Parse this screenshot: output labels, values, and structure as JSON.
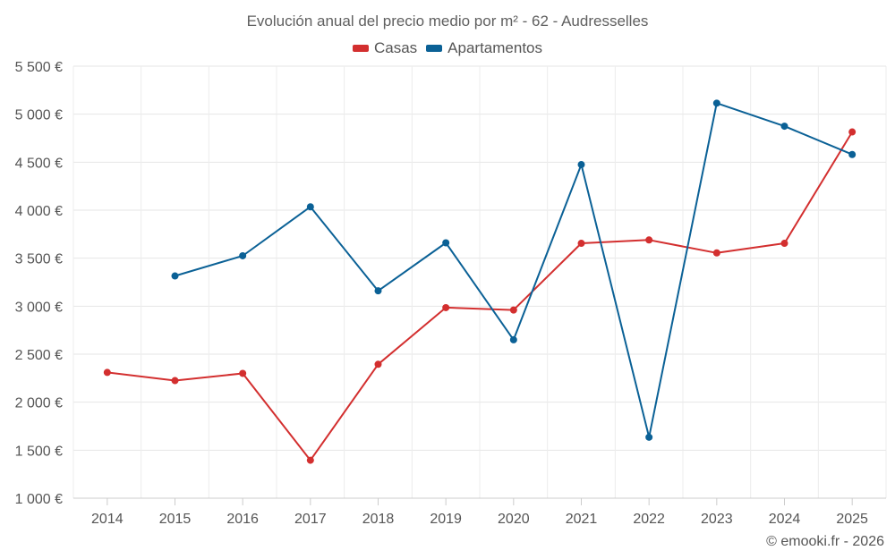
{
  "chart_data": {
    "type": "line",
    "title": "Evolución anual del precio medio por m² - 62 - Audresselles",
    "xlabel": "",
    "ylabel": "",
    "categories": [
      "2014",
      "2015",
      "2016",
      "2017",
      "2018",
      "2019",
      "2020",
      "2021",
      "2022",
      "2023",
      "2024",
      "2025"
    ],
    "ylim": [
      1000,
      5500
    ],
    "yticks": [
      1000,
      1500,
      2000,
      2500,
      3000,
      3500,
      4000,
      4500,
      5000,
      5500
    ],
    "ytick_labels": [
      "1 000 €",
      "1 500 €",
      "2 000 €",
      "2 500 €",
      "3 000 €",
      "3 500 €",
      "4 000 €",
      "4 500 €",
      "5 000 €",
      "5 500 €"
    ],
    "grid": true,
    "legend_position": "top-center",
    "series": [
      {
        "name": "Casas",
        "color": "#d32f2f",
        "values": [
          2310,
          2225,
          2300,
          1395,
          2395,
          2985,
          2960,
          3655,
          3690,
          3555,
          3655,
          4815
        ]
      },
      {
        "name": "Apartamentos",
        "color": "#0b6196",
        "values": [
          null,
          3315,
          3525,
          4035,
          3160,
          3660,
          2650,
          4475,
          1635,
          5115,
          4875,
          4580
        ]
      }
    ]
  },
  "credit": "© emooki.fr - 2026"
}
